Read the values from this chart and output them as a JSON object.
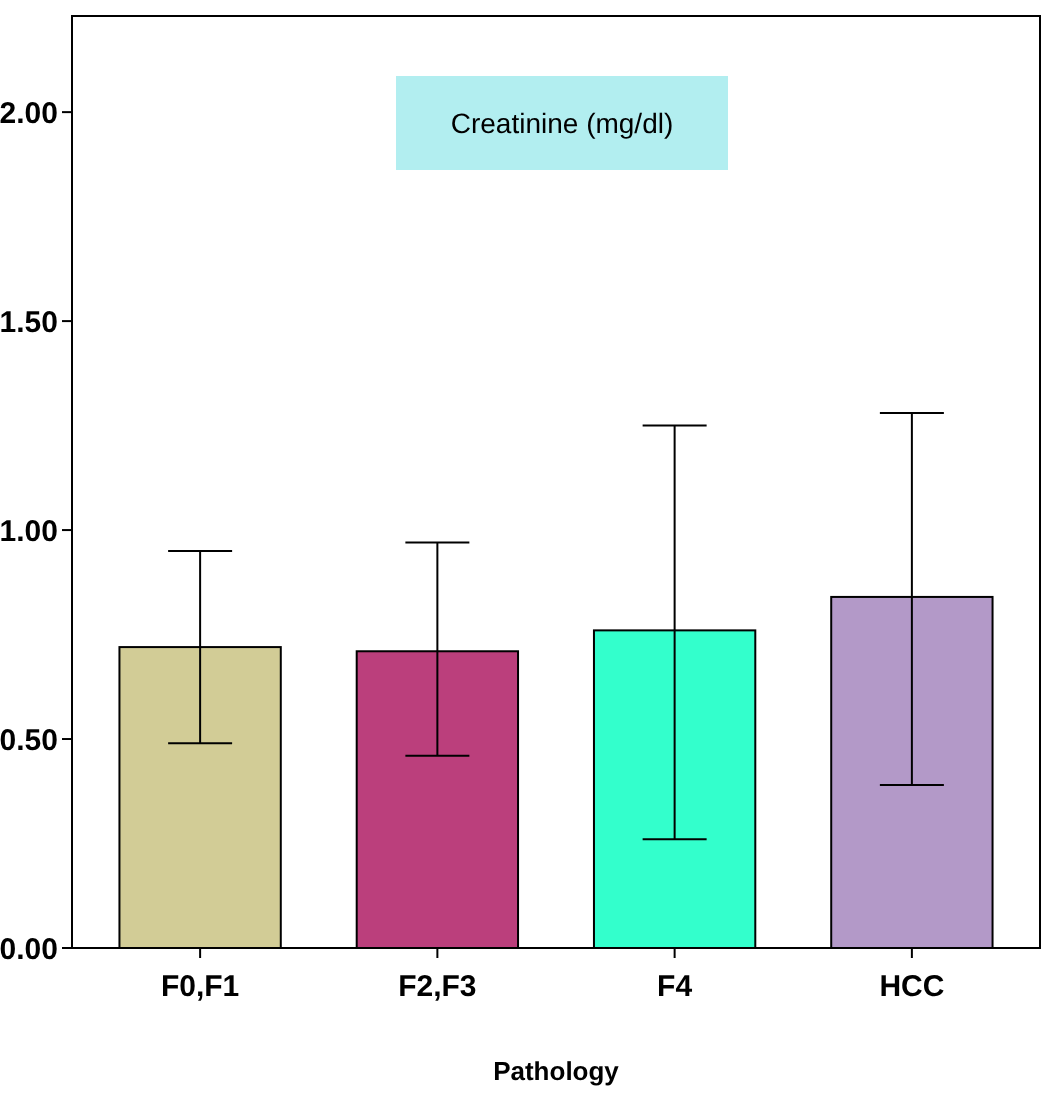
{
  "chart_data": {
    "type": "bar",
    "title": "Creatinine (mg/dl)",
    "xlabel": "Pathology",
    "categories": [
      "F0,F1",
      "F2,F3",
      "F4",
      "HCC"
    ],
    "values": [
      0.72,
      0.71,
      0.76,
      0.84
    ],
    "colors": [
      "#d2cc96",
      "#bb3f7c",
      "#33ffcc",
      "#b399c8"
    ],
    "errors": [
      [
        0.49,
        0.95
      ],
      [
        0.46,
        0.97
      ],
      [
        0.26,
        1.25
      ],
      [
        0.39,
        1.28
      ]
    ],
    "ylim": [
      0,
      2.23
    ],
    "yticks": [
      {
        "value": 0,
        "label": "0.00"
      },
      {
        "value": 0.5,
        "label": "0.50"
      },
      {
        "value": 1,
        "label": "1.00"
      },
      {
        "value": 1.5,
        "label": "1.50"
      },
      {
        "value": 2,
        "label": "2.00"
      }
    ],
    "grid": false
  }
}
